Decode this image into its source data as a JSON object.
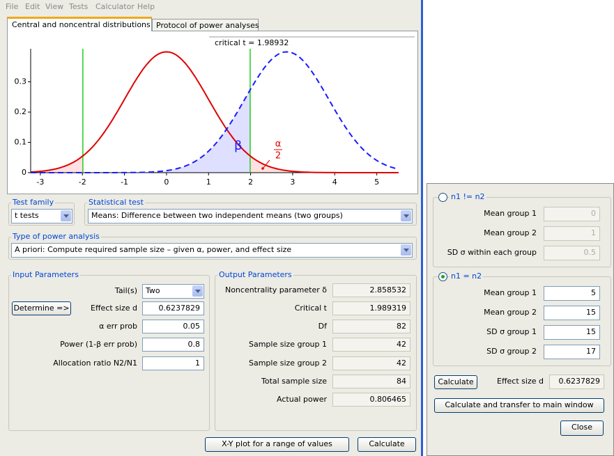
{
  "menu": [
    "File",
    "Edit",
    "View",
    "Tests",
    "Calculator",
    "Help"
  ],
  "tabs": [
    "Central and noncentral distributions",
    "Protocol of power analyses"
  ],
  "plot": {
    "critical_label": "critical t = 1.98932",
    "beta_label": "β",
    "alpha_label": {
      "numerator": "α",
      "denominator": "2"
    },
    "xlim": [
      -3.23,
      5.52
    ],
    "ylim": [
      0,
      0.4
    ],
    "xticks": [
      -3,
      -2,
      -1,
      0,
      1,
      2,
      3,
      4,
      5
    ],
    "yticks": [
      0,
      0.1,
      0.2,
      0.3
    ]
  },
  "test_family": {
    "label": "Test family",
    "value": "t tests"
  },
  "statistical_test": {
    "label": "Statistical test",
    "value": "Means: Difference between two independent means (two groups)"
  },
  "power_analysis": {
    "label": "Type of power analysis",
    "value": "A priori: Compute required sample size – given α, power, and effect size"
  },
  "input_parameters": {
    "title": "Input Parameters",
    "determine_button": "Determine =>",
    "rows": [
      {
        "label": "Tail(s)",
        "value": "Two"
      },
      {
        "label": "Effect size d",
        "value": 0.6237829
      },
      {
        "label": "α err prob",
        "value": 0.05
      },
      {
        "label": "Power (1-β err prob)",
        "value": 0.8
      },
      {
        "label": "Allocation ratio N2/N1",
        "value": 1
      }
    ]
  },
  "output_parameters": {
    "title": "Output Parameters",
    "rows": [
      {
        "label": "Noncentrality parameter δ",
        "value": 2.858532
      },
      {
        "label": "Critical t",
        "value": 1.989319
      },
      {
        "label": "Df",
        "value": 82
      },
      {
        "label": "Sample size group 1",
        "value": 42
      },
      {
        "label": "Sample size group 2",
        "value": 42
      },
      {
        "label": "Total sample size",
        "value": 84
      },
      {
        "label": "Actual power",
        "value": 0.806465
      }
    ]
  },
  "buttons": {
    "xy_plot": "X-Y plot for a range of values",
    "calculate": "Calculate"
  },
  "effect_size_dialog": {
    "option_unequal": {
      "label": "n1 != n2",
      "rows": [
        {
          "label": "Mean group 1",
          "value": 0
        },
        {
          "label": "Mean group 2",
          "value": 1
        },
        {
          "label": "SD σ within each group",
          "value": 0.5
        }
      ]
    },
    "option_equal": {
      "label": "n1 = n2",
      "rows": [
        {
          "label": "Mean group 1",
          "value": 5
        },
        {
          "label": "Mean group 2",
          "value": 15
        },
        {
          "label": "SD σ group 1",
          "value": 15
        },
        {
          "label": "SD σ group 2",
          "value": 17
        }
      ]
    },
    "calculate_button": "Calculate",
    "effect_size": {
      "label": "Effect size d",
      "value": 0.6237829
    },
    "transfer_button": "Calculate and transfer to main window",
    "close_button": "Close"
  }
}
